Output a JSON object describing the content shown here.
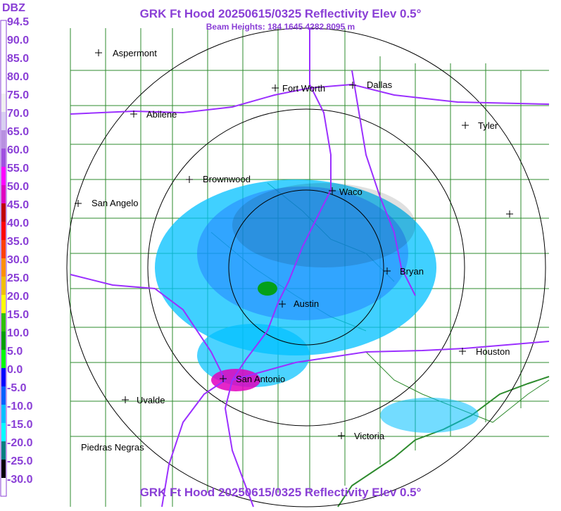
{
  "header": {
    "title": "GRK Ft Hood 20250615/0325 Reflectivity Elev 0.5°",
    "subtitle": "Beam Heights: 184 1645 4282 8095 m",
    "footer_title": "GRK Ft Hood 20250615/0325 Reflectivity Elev 0.5°"
  },
  "scale": {
    "unit": "DBZ",
    "labels": [
      "94.5",
      "90.0",
      "85.0",
      "80.0",
      "75.0",
      "70.0",
      "65.0",
      "60.0",
      "55.0",
      "50.0",
      "45.0",
      "40.0",
      "35.0",
      "30.0",
      "25.0",
      "20.0",
      "15.0",
      "10.0",
      "5.0",
      "0.0",
      "-5.0",
      "-10.0",
      "-15.0",
      "-20.0",
      "-25.0",
      "-30.0"
    ],
    "colors": [
      "#ffffff",
      "#ffffff",
      "#ffffff",
      "#ffffff",
      "#f0f0f0",
      "#d8d0f0",
      "#b890e0",
      "#a050e0",
      "#ff00ff",
      "#e000c0",
      "#c00000",
      "#ff0000",
      "#ff4000",
      "#ff9000",
      "#f0c000",
      "#ffff00",
      "#30c000",
      "#00a000",
      "#00ff00",
      "#0000ff",
      "#0060ff",
      "#00c0ff",
      "#00ffff",
      "#008080",
      "#000000",
      "#ffffff"
    ]
  },
  "cities": [
    {
      "name": "Aspermont"
    },
    {
      "name": "Fort Worth"
    },
    {
      "name": "Dallas"
    },
    {
      "name": "Abilene"
    },
    {
      "name": "Tyler"
    },
    {
      "name": "Brownwood"
    },
    {
      "name": "Waco"
    },
    {
      "name": "San Angelo"
    },
    {
      "name": "Bryan"
    },
    {
      "name": "Austin"
    },
    {
      "name": "Houston"
    },
    {
      "name": "San Antonio"
    },
    {
      "name": "Uvalde"
    },
    {
      "name": "Victoria"
    },
    {
      "name": "Piedras Negras"
    }
  ],
  "colors": {
    "title": "#8a3fd6",
    "county_lines": "#2e8b2e",
    "highways": "#9b30ff",
    "range_rings": "#000000"
  }
}
